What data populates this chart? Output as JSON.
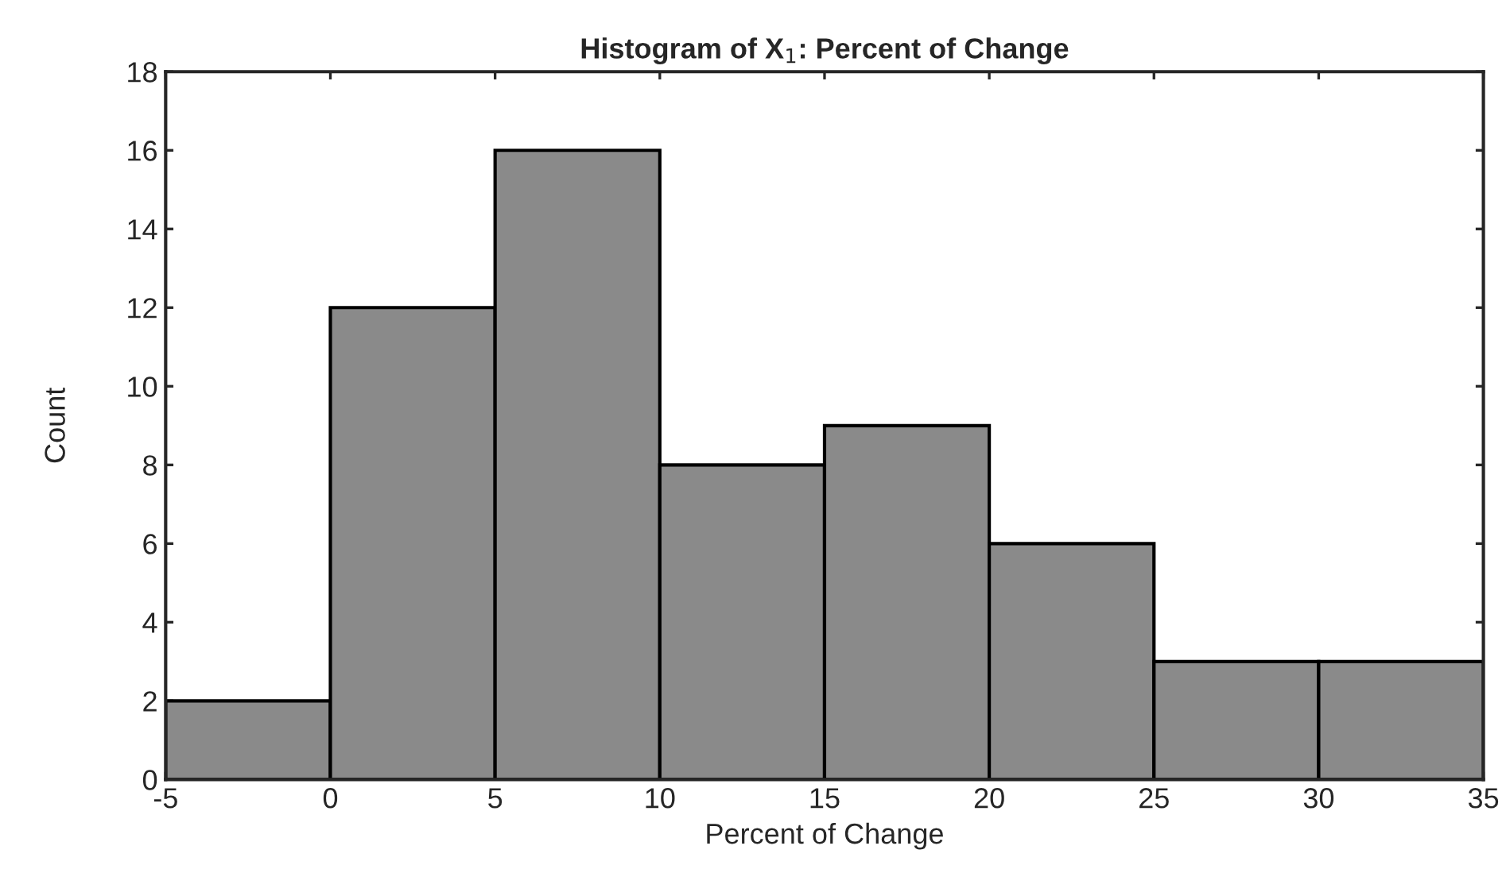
{
  "chart_data": {
    "type": "histogram",
    "title": "Histogram of X$_{1}$: Percent of Change",
    "xlabel": "Percent of Change",
    "ylabel": "Count",
    "bins": [
      -5,
      0,
      5,
      10,
      15,
      20,
      25,
      30,
      35
    ],
    "values": [
      2,
      12,
      16,
      8,
      9,
      6,
      3,
      3
    ],
    "color": "#8a8a8a",
    "xlim": [
      -5,
      35
    ],
    "xticks": [
      -5,
      0,
      5,
      10,
      15,
      20,
      25,
      30,
      35
    ],
    "ylim": [
      0,
      18
    ],
    "yticks": [
      0,
      2,
      4,
      6,
      8,
      10,
      12,
      14,
      16,
      18
    ],
    "grid": false,
    "legend": false
  }
}
